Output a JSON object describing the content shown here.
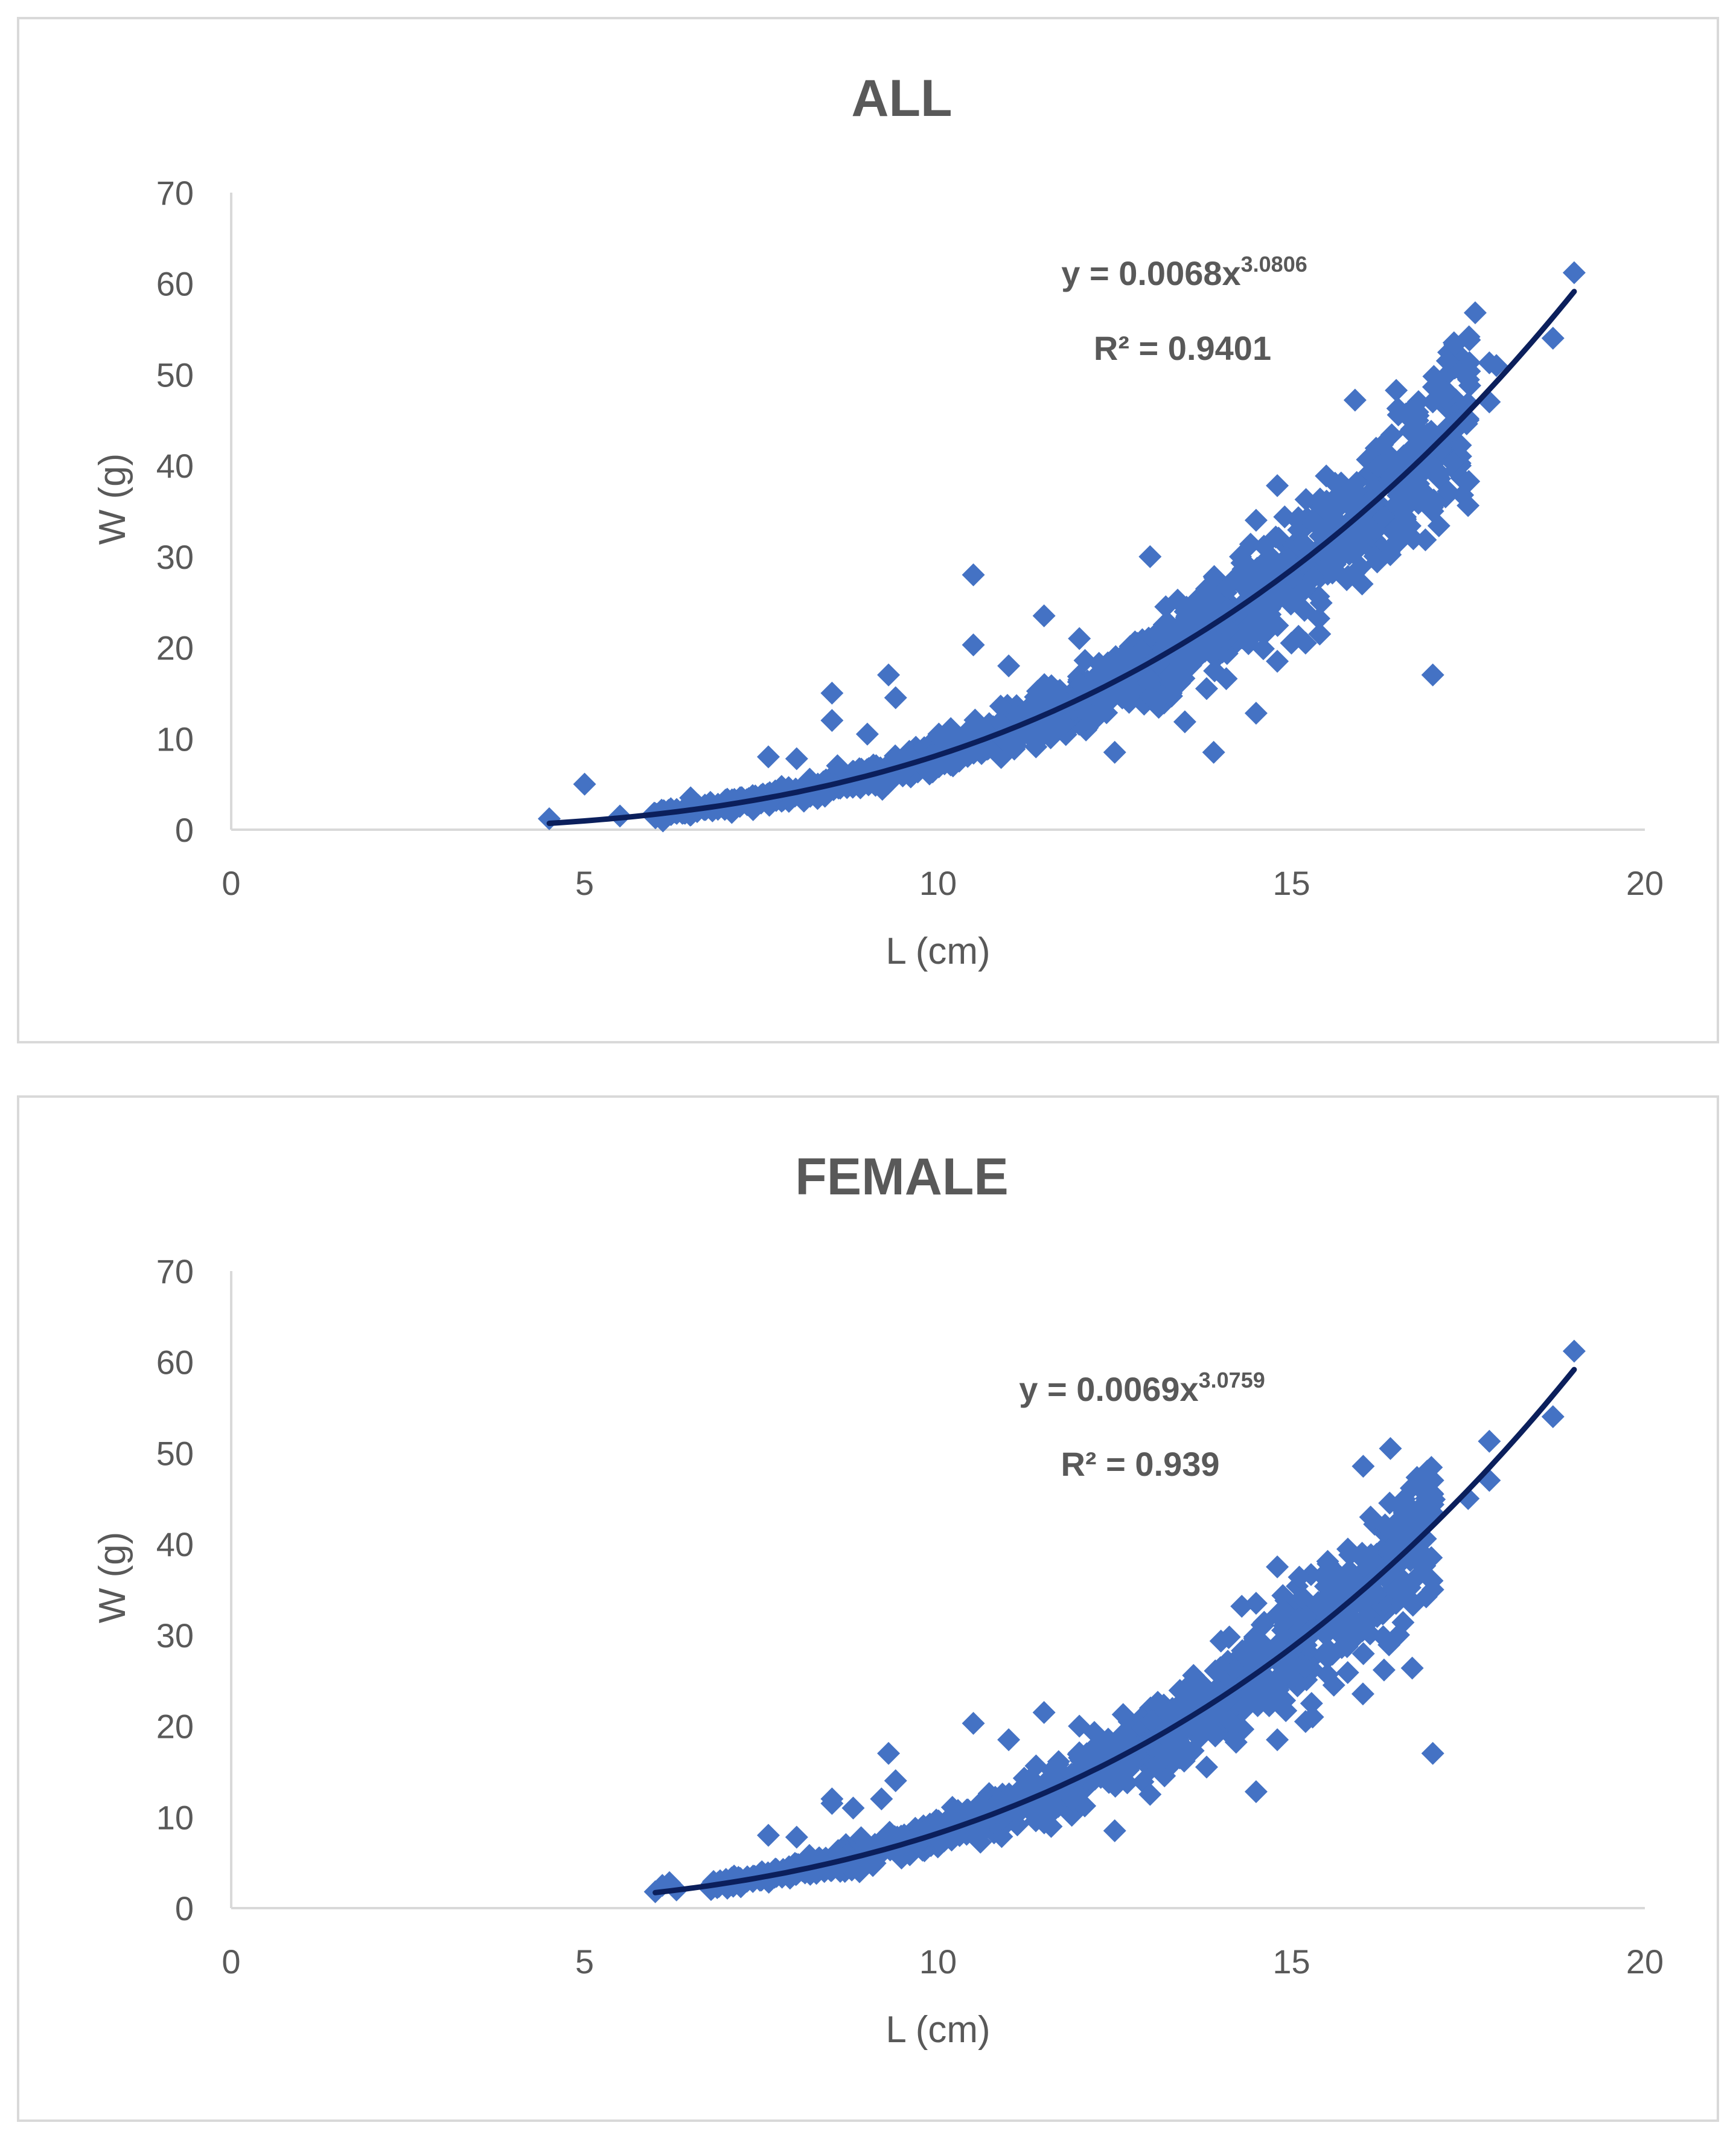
{
  "colors": {
    "marker": "#4472C4",
    "trend": "#0B1F5C",
    "axis": "#d9d9d9",
    "text": "#595959",
    "border": "#d9d9d9"
  },
  "chart_data": [
    {
      "type": "scatter",
      "title": "ALL",
      "xlabel": "L (cm)",
      "ylabel": "W (g)",
      "xlim": [
        0,
        20
      ],
      "ylim": [
        0,
        70
      ],
      "xticks": [
        "0",
        "5",
        "10",
        "15",
        "20"
      ],
      "yticks": [
        "0",
        "10",
        "20",
        "30",
        "40",
        "50",
        "60",
        "70"
      ],
      "marker": "diamond",
      "trendline": {
        "type": "power",
        "a": 0.0068,
        "b": 3.0806,
        "x_from": 4.5,
        "x_to": 19
      },
      "equation": {
        "prefix": "y = 0.0068x",
        "exponent": "3.0806",
        "r2_label": "R² = 0.9401"
      },
      "cloud": {
        "x_from": 6.0,
        "x_to": 17.5,
        "count": 1400
      },
      "points": [
        [
          4.5,
          1.2
        ],
        [
          5.0,
          5.0
        ],
        [
          5.5,
          1.5
        ],
        [
          6.5,
          3.5
        ],
        [
          7.6,
          8.0
        ],
        [
          8.0,
          7.8
        ],
        [
          8.5,
          15.0
        ],
        [
          8.5,
          12.0
        ],
        [
          9.3,
          17.0
        ],
        [
          9.4,
          14.5
        ],
        [
          9.0,
          10.5
        ],
        [
          10.5,
          28.0
        ],
        [
          10.5,
          20.3
        ],
        [
          11.5,
          23.5
        ],
        [
          11.0,
          18.0
        ],
        [
          12.0,
          21.0
        ],
        [
          13.0,
          30.0
        ],
        [
          13.3,
          15.0
        ],
        [
          12.5,
          8.5
        ],
        [
          13.8,
          15.5
        ],
        [
          13.9,
          8.5
        ],
        [
          14.5,
          12.8
        ],
        [
          14.5,
          34.0
        ],
        [
          14.8,
          37.8
        ],
        [
          14.8,
          18.5
        ],
        [
          15.2,
          20.5
        ],
        [
          15.0,
          20.5
        ],
        [
          15.4,
          21.5
        ],
        [
          15.9,
          47.2
        ],
        [
          16.0,
          27.0
        ],
        [
          16.5,
          40.0
        ],
        [
          16.7,
          44.0
        ],
        [
          16.8,
          38.0
        ],
        [
          17.0,
          35.0
        ],
        [
          17.0,
          17.0
        ],
        [
          17.0,
          47.0
        ],
        [
          17.0,
          43.5
        ],
        [
          17.1,
          48.5
        ],
        [
          17.3,
          53.5
        ],
        [
          17.5,
          45.0
        ],
        [
          17.6,
          56.8
        ],
        [
          17.8,
          47.0
        ],
        [
          17.8,
          51.3
        ],
        [
          17.9,
          51.0
        ],
        [
          18.7,
          54.0
        ],
        [
          19.0,
          61.2
        ]
      ]
    },
    {
      "type": "scatter",
      "title": "FEMALE",
      "xlabel": "L (cm)",
      "ylabel": "W (g)",
      "xlim": [
        0,
        20
      ],
      "ylim": [
        0,
        70
      ],
      "xticks": [
        "0",
        "5",
        "10",
        "15",
        "20"
      ],
      "yticks": [
        "0",
        "10",
        "20",
        "30",
        "40",
        "50",
        "60",
        "70"
      ],
      "marker": "diamond",
      "trendline": {
        "type": "power",
        "a": 0.0069,
        "b": 3.0759,
        "x_from": 6,
        "x_to": 19
      },
      "equation": {
        "prefix": "y = 0.0069x",
        "exponent": "3.0759",
        "r2_label": "R² = 0.939"
      },
      "cloud": {
        "x_from": 6.8,
        "x_to": 17.0,
        "count": 1100
      },
      "points": [
        [
          6.0,
          1.8
        ],
        [
          6.1,
          2.5
        ],
        [
          6.2,
          2.8
        ],
        [
          6.3,
          2.0
        ],
        [
          7.6,
          8.0
        ],
        [
          8.0,
          7.8
        ],
        [
          8.5,
          12.0
        ],
        [
          8.5,
          11.5
        ],
        [
          8.8,
          11.0
        ],
        [
          9.3,
          17.0
        ],
        [
          9.4,
          14.0
        ],
        [
          9.2,
          12.0
        ],
        [
          10.5,
          20.3
        ],
        [
          11.5,
          21.5
        ],
        [
          11.0,
          18.5
        ],
        [
          12.0,
          20.0
        ],
        [
          12.5,
          8.5
        ],
        [
          13.0,
          12.5
        ],
        [
          13.8,
          15.5
        ],
        [
          14.5,
          12.8
        ],
        [
          14.5,
          33.5
        ],
        [
          14.8,
          37.5
        ],
        [
          14.8,
          18.5
        ],
        [
          15.2,
          20.5
        ],
        [
          15.3,
          21.0
        ],
        [
          15.6,
          24.5
        ],
        [
          16.0,
          39.0
        ],
        [
          16.5,
          40.0
        ],
        [
          16.7,
          42.5
        ],
        [
          16.8,
          38.0
        ],
        [
          17.0,
          35.0
        ],
        [
          17.0,
          17.0
        ],
        [
          17.0,
          47.0
        ],
        [
          17.0,
          45.5
        ],
        [
          17.5,
          45.0
        ],
        [
          17.8,
          47.0
        ],
        [
          17.8,
          51.3
        ],
        [
          18.7,
          54.0
        ],
        [
          19.0,
          61.2
        ]
      ]
    }
  ]
}
